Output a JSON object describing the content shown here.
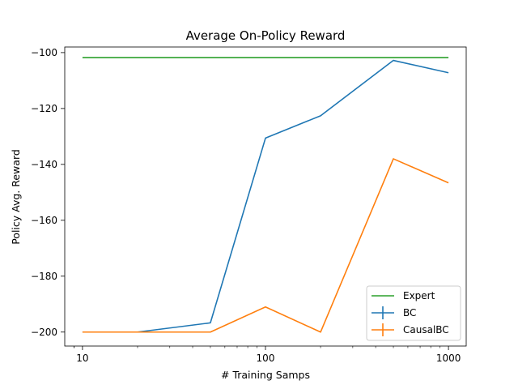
{
  "chart_data": {
    "type": "line",
    "title": "Average On-Policy Reward",
    "xlabel": "# Training Samps",
    "ylabel": "Policy Avg. Reward",
    "xscale": "log",
    "xlim": [
      8,
      1250
    ],
    "ylim": [
      -205,
      -98
    ],
    "xticks": [
      10,
      100,
      1000
    ],
    "xtick_labels": [
      "10",
      "100",
      "1000"
    ],
    "yticks": [
      -200,
      -180,
      -160,
      -140,
      -120,
      -100
    ],
    "ytick_labels": [
      "−200",
      "−180",
      "−160",
      "−140",
      "−120",
      "−100"
    ],
    "grid": false,
    "legend_position": "lower-right",
    "x": [
      10,
      20,
      50,
      100,
      200,
      500,
      1000
    ],
    "series": [
      {
        "name": "Expert",
        "color": "#2ca02c",
        "style": "line",
        "values": [
          -101.8,
          -101.8,
          -101.8,
          -101.8,
          -101.8,
          -101.8,
          -101.8
        ]
      },
      {
        "name": "BC",
        "color": "#1f77b4",
        "style": "errorbar",
        "values": [
          -200,
          -200,
          -196.7,
          -130.6,
          -122.6,
          -102.8,
          -107.2
        ]
      },
      {
        "name": "CausalBC",
        "color": "#ff7f0e",
        "style": "errorbar",
        "values": [
          -200,
          -200,
          -200,
          -191,
          -200,
          -138,
          -146.6
        ]
      }
    ]
  }
}
